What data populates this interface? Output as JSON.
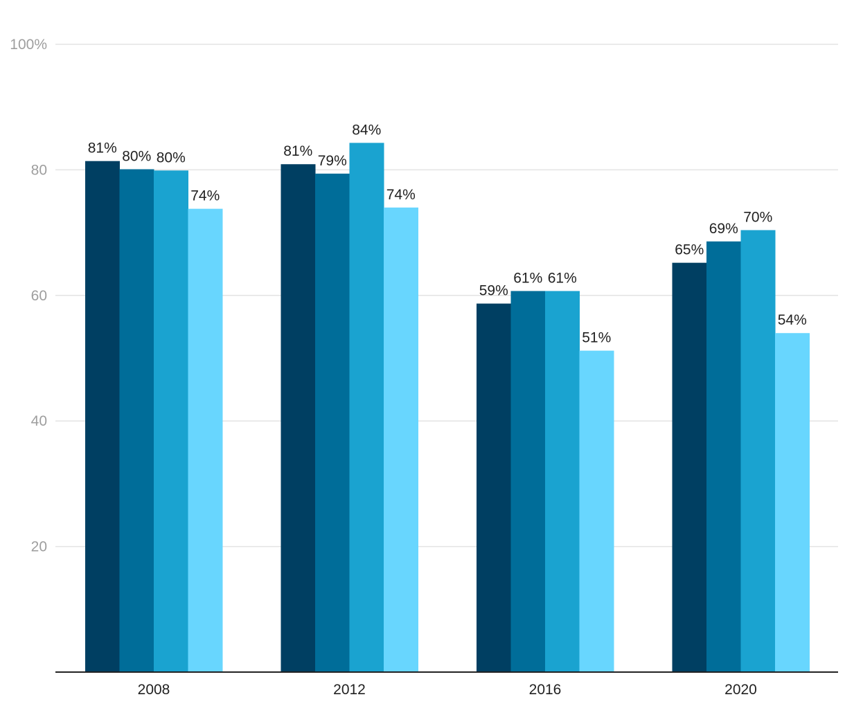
{
  "chart_data": {
    "type": "bar",
    "categories": [
      "2008",
      "2012",
      "2016",
      "2020"
    ],
    "series": [
      {
        "values": [
          81.4,
          80.9,
          58.7,
          65.2
        ],
        "labels": [
          "81%",
          "81%",
          "59%",
          "65%"
        ],
        "color": "#003f62"
      },
      {
        "values": [
          80.1,
          79.4,
          60.7,
          68.6
        ],
        "labels": [
          "80%",
          "79%",
          "61%",
          "69%"
        ],
        "color": "#006d99"
      },
      {
        "values": [
          79.9,
          84.3,
          60.7,
          70.4
        ],
        "labels": [
          "80%",
          "84%",
          "61%",
          "70%"
        ],
        "color": "#1aa3d0"
      },
      {
        "values": [
          73.8,
          74.0,
          51.2,
          54.0
        ],
        "labels": [
          "74%",
          "74%",
          "51%",
          "54%"
        ],
        "color": "#68d6fe"
      }
    ],
    "yaxis": {
      "ticks": [
        20,
        40,
        60,
        80,
        100
      ],
      "tick_labels": [
        "20",
        "40",
        "60",
        "80",
        "100%"
      ]
    },
    "ylim": [
      0,
      100
    ],
    "grid": true,
    "title": "",
    "xlabel": "",
    "ylabel": ""
  }
}
